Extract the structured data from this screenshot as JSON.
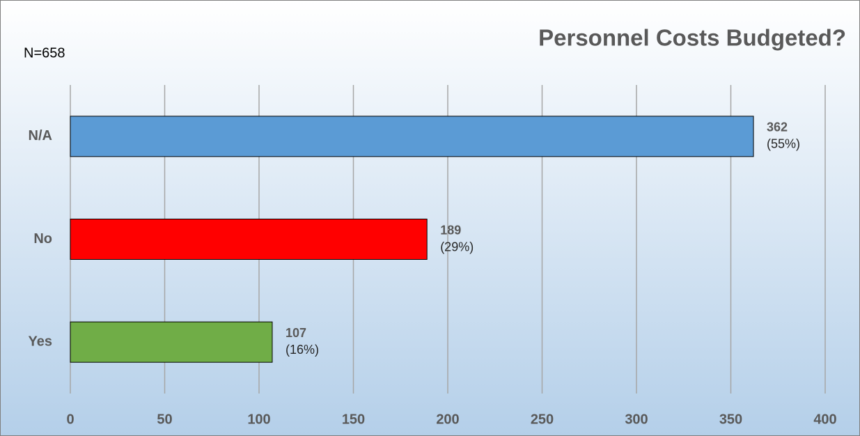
{
  "chart_data": {
    "type": "hbar",
    "title": "Personnel Costs Budgeted?",
    "annotation": "N=658",
    "categories": [
      "N/A",
      "No",
      "Yes"
    ],
    "values": [
      362,
      189,
      107
    ],
    "percent_labels": [
      "(55%)",
      "(29%)",
      "(16%)"
    ],
    "colors": [
      "#5b9bd5",
      "#ff0000",
      "#70ad47"
    ],
    "xlim": [
      0,
      400
    ],
    "xticks": [
      0,
      50,
      100,
      150,
      200,
      250,
      300,
      350,
      400
    ],
    "grid": true
  }
}
